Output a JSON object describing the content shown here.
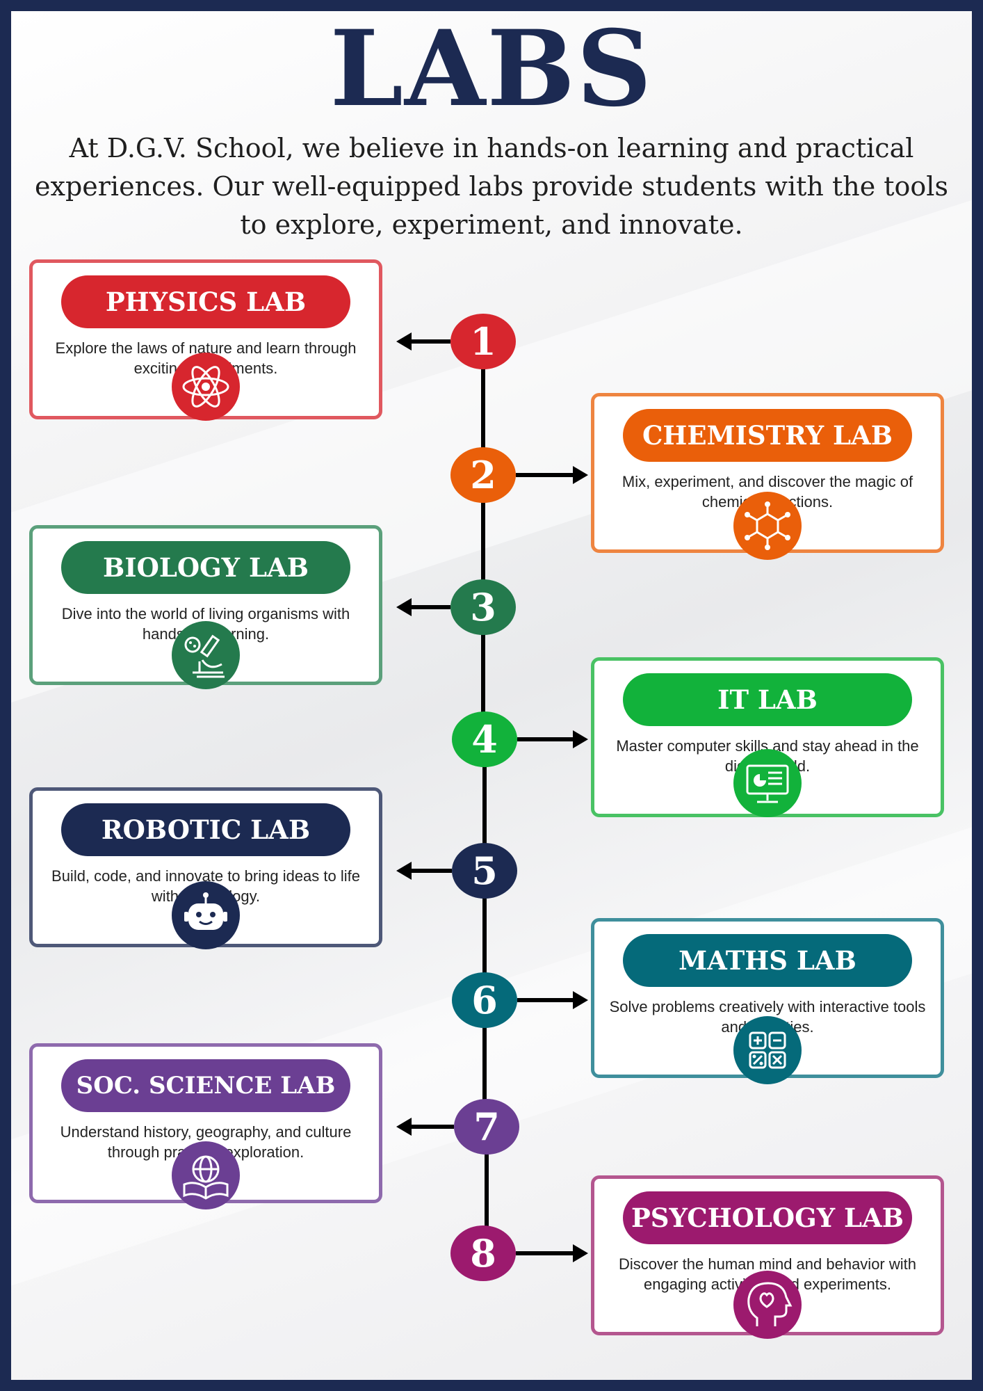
{
  "title": "LABS",
  "intro": "At D.G.V. School, we believe in hands-on learning and practical experiences. Our well-equipped labs provide students with the tools to explore, experiment, and innovate.",
  "labs": [
    {
      "number": "1",
      "name": "PHYSICS LAB",
      "description": "Explore the laws of nature and learn through exciting experiments.",
      "icon": "atom-icon",
      "color": "#d7262e",
      "border": "#e0585f"
    },
    {
      "number": "2",
      "name": "CHEMISTRY LAB",
      "description": "Mix, experiment, and discover the magic of chemical reactions.",
      "icon": "molecule-icon",
      "color": "#ea5f0a",
      "border": "#ee8440"
    },
    {
      "number": "3",
      "name": "BIOLOGY LAB",
      "description": "Dive into the world of living organisms with hands-on learning.",
      "icon": "microscope-icon",
      "color": "#247a4d",
      "border": "#5ba07b"
    },
    {
      "number": "4",
      "name": "IT LAB",
      "description": "Master computer skills and stay ahead in the digital world.",
      "icon": "computer-monitor-icon",
      "color": "#12b23b",
      "border": "#49c264"
    },
    {
      "number": "5",
      "name": "ROBOTIC LAB",
      "description": "Build, code, and innovate to bring ideas to life with technology.",
      "icon": "robot-icon",
      "color": "#1c2a52",
      "border": "#4e5878"
    },
    {
      "number": "6",
      "name": "MATHS LAB",
      "description": "Solve problems creatively with interactive tools and activities.",
      "icon": "calculator-icon",
      "color": "#056a7a",
      "border": "#3f8f9c"
    },
    {
      "number": "7",
      "name": "SOC. SCIENCE LAB",
      "description": "Understand history, geography, and culture through practical exploration.",
      "icon": "globe-book-icon",
      "color": "#6b3f93",
      "border": "#8e6aad"
    },
    {
      "number": "8",
      "name": "PSYCHOLOGY LAB",
      "description": "Discover the human mind and behavior with engaging activities and experiments.",
      "icon": "head-heart-icon",
      "color": "#9c1a6e",
      "border": "#b4568f"
    }
  ]
}
